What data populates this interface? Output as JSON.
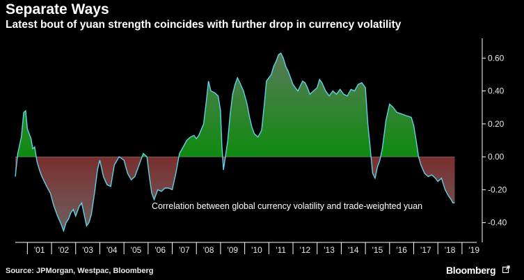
{
  "header": {
    "title": "Separate Ways",
    "subtitle": "Latest bout of yuan strength coincides with further drop in currency volatility"
  },
  "footer": {
    "source": "Source: JPMorgan, Westpac, Bloomberg",
    "brand": "Bloomberg"
  },
  "colors": {
    "positive_fill": "#0a8a0a",
    "negative_fill": "#8b1010",
    "line": "#5fd3ea",
    "axis": "#ffffff"
  },
  "chart_data": {
    "type": "area",
    "title": "Separate Ways",
    "subtitle": "Latest bout of yuan strength coincides with further drop in currency volatility",
    "xlabel": "",
    "ylabel": "",
    "annotation": "Correlation between global currency volatility and trade-weighted yuan",
    "ylim": [
      -0.52,
      0.72
    ],
    "xlim": [
      2000.5,
      2019.55
    ],
    "y_ticks": [
      0.6,
      0.4,
      0.2,
      0.0,
      -0.2,
      -0.4
    ],
    "y_tick_labels": [
      "0.60",
      "0.40",
      "0.20",
      "0.00",
      "-0.20",
      "-0.40"
    ],
    "x_tick_labels": [
      "'01",
      "'02",
      "'03",
      "'04",
      "'05",
      "'06",
      "'07",
      "'08",
      "'09",
      "'10",
      "'11",
      "'12",
      "'13",
      "'14",
      "'15",
      "'16",
      "'17",
      "'18",
      "'19"
    ],
    "x_tick_years": [
      2001,
      2002,
      2003,
      2004,
      2005,
      2006,
      2007,
      2008,
      2009,
      2010,
      2011,
      2012,
      2013,
      2014,
      2015,
      2016,
      2017,
      2018,
      2019
    ],
    "grid": false,
    "series": [
      {
        "name": "Correlation between global currency volatility and trade-weighted yuan",
        "points": [
          [
            2000.5,
            -0.12
          ],
          [
            2000.6,
            0.02
          ],
          [
            2000.75,
            0.12
          ],
          [
            2000.85,
            0.27
          ],
          [
            2000.93,
            0.28
          ],
          [
            2001.0,
            0.17
          ],
          [
            2001.15,
            0.11
          ],
          [
            2001.22,
            0.05
          ],
          [
            2001.3,
            0.06
          ],
          [
            2001.4,
            -0.03
          ],
          [
            2001.5,
            -0.08
          ],
          [
            2001.6,
            -0.12
          ],
          [
            2001.8,
            -0.18
          ],
          [
            2001.95,
            -0.22
          ],
          [
            2002.1,
            -0.3
          ],
          [
            2002.25,
            -0.36
          ],
          [
            2002.4,
            -0.41
          ],
          [
            2002.5,
            -0.45
          ],
          [
            2002.6,
            -0.4
          ],
          [
            2002.7,
            -0.38
          ],
          [
            2002.8,
            -0.34
          ],
          [
            2002.9,
            -0.32
          ],
          [
            2003.0,
            -0.36
          ],
          [
            2003.15,
            -0.3
          ],
          [
            2003.25,
            -0.28
          ],
          [
            2003.35,
            -0.35
          ],
          [
            2003.45,
            -0.42
          ],
          [
            2003.55,
            -0.4
          ],
          [
            2003.65,
            -0.35
          ],
          [
            2003.8,
            -0.2
          ],
          [
            2003.9,
            -0.08
          ],
          [
            2004.0,
            -0.02
          ],
          [
            2004.15,
            -0.12
          ],
          [
            2004.3,
            -0.17
          ],
          [
            2004.45,
            -0.18
          ],
          [
            2004.6,
            -0.05
          ],
          [
            2004.8,
            0.0
          ],
          [
            2005.0,
            -0.02
          ],
          [
            2005.15,
            -0.1
          ],
          [
            2005.3,
            -0.14
          ],
          [
            2005.45,
            -0.12
          ],
          [
            2005.6,
            -0.06
          ],
          [
            2005.8,
            0.02
          ],
          [
            2005.95,
            0.0
          ],
          [
            2006.05,
            -0.12
          ],
          [
            2006.15,
            -0.22
          ],
          [
            2006.25,
            -0.26
          ],
          [
            2006.4,
            -0.2
          ],
          [
            2006.55,
            -0.21
          ],
          [
            2006.7,
            -0.19
          ],
          [
            2006.85,
            -0.19
          ],
          [
            2007.0,
            -0.2
          ],
          [
            2007.15,
            -0.1
          ],
          [
            2007.3,
            0.02
          ],
          [
            2007.45,
            0.06
          ],
          [
            2007.6,
            0.1
          ],
          [
            2007.75,
            0.12
          ],
          [
            2007.9,
            0.13
          ],
          [
            2008.0,
            0.11
          ],
          [
            2008.1,
            0.13
          ],
          [
            2008.3,
            0.2
          ],
          [
            2008.42,
            0.35
          ],
          [
            2008.5,
            0.46
          ],
          [
            2008.6,
            0.4
          ],
          [
            2008.75,
            0.39
          ],
          [
            2008.9,
            0.37
          ],
          [
            2009.0,
            0.28
          ],
          [
            2009.05,
            0.08
          ],
          [
            2009.12,
            -0.08
          ],
          [
            2009.2,
            0.0
          ],
          [
            2009.3,
            0.1
          ],
          [
            2009.4,
            0.26
          ],
          [
            2009.5,
            0.38
          ],
          [
            2009.6,
            0.44
          ],
          [
            2009.7,
            0.48
          ],
          [
            2009.8,
            0.45
          ],
          [
            2009.95,
            0.4
          ],
          [
            2010.1,
            0.32
          ],
          [
            2010.2,
            0.24
          ],
          [
            2010.3,
            0.18
          ],
          [
            2010.4,
            0.14
          ],
          [
            2010.55,
            0.12
          ],
          [
            2010.7,
            0.16
          ],
          [
            2010.8,
            0.3
          ],
          [
            2010.9,
            0.46
          ],
          [
            2011.0,
            0.48
          ],
          [
            2011.1,
            0.5
          ],
          [
            2011.2,
            0.55
          ],
          [
            2011.3,
            0.58
          ],
          [
            2011.4,
            0.62
          ],
          [
            2011.5,
            0.63
          ],
          [
            2011.6,
            0.6
          ],
          [
            2011.7,
            0.55
          ],
          [
            2011.8,
            0.52
          ],
          [
            2011.9,
            0.48
          ],
          [
            2012.0,
            0.44
          ],
          [
            2012.1,
            0.42
          ],
          [
            2012.2,
            0.4
          ],
          [
            2012.3,
            0.43
          ],
          [
            2012.4,
            0.46
          ],
          [
            2012.5,
            0.45
          ],
          [
            2012.6,
            0.42
          ],
          [
            2012.7,
            0.38
          ],
          [
            2012.85,
            0.4
          ],
          [
            2013.0,
            0.42
          ],
          [
            2013.1,
            0.47
          ],
          [
            2013.2,
            0.45
          ],
          [
            2013.35,
            0.4
          ],
          [
            2013.5,
            0.37
          ],
          [
            2013.65,
            0.4
          ],
          [
            2013.8,
            0.38
          ],
          [
            2013.95,
            0.41
          ],
          [
            2014.1,
            0.38
          ],
          [
            2014.25,
            0.37
          ],
          [
            2014.4,
            0.41
          ],
          [
            2014.55,
            0.4
          ],
          [
            2014.7,
            0.44
          ],
          [
            2014.85,
            0.45
          ],
          [
            2015.0,
            0.42
          ],
          [
            2015.1,
            0.2
          ],
          [
            2015.2,
            0.05
          ],
          [
            2015.3,
            -0.1
          ],
          [
            2015.4,
            -0.13
          ],
          [
            2015.5,
            -0.06
          ],
          [
            2015.6,
            -0.02
          ],
          [
            2015.7,
            0.05
          ],
          [
            2015.85,
            0.22
          ],
          [
            2016.0,
            0.32
          ],
          [
            2016.15,
            0.3
          ],
          [
            2016.3,
            0.27
          ],
          [
            2016.5,
            0.26
          ],
          [
            2016.7,
            0.25
          ],
          [
            2016.9,
            0.24
          ],
          [
            2017.0,
            0.19
          ],
          [
            2017.1,
            0.1
          ],
          [
            2017.2,
            0.0
          ],
          [
            2017.3,
            -0.05
          ],
          [
            2017.45,
            -0.1
          ],
          [
            2017.6,
            -0.12
          ],
          [
            2017.75,
            -0.11
          ],
          [
            2017.9,
            -0.13
          ],
          [
            2018.0,
            -0.15
          ],
          [
            2018.15,
            -0.13
          ],
          [
            2018.3,
            -0.2
          ],
          [
            2018.45,
            -0.24
          ],
          [
            2018.55,
            -0.26
          ],
          [
            2018.62,
            -0.28
          ],
          [
            2018.7,
            -0.28
          ]
        ]
      }
    ]
  }
}
